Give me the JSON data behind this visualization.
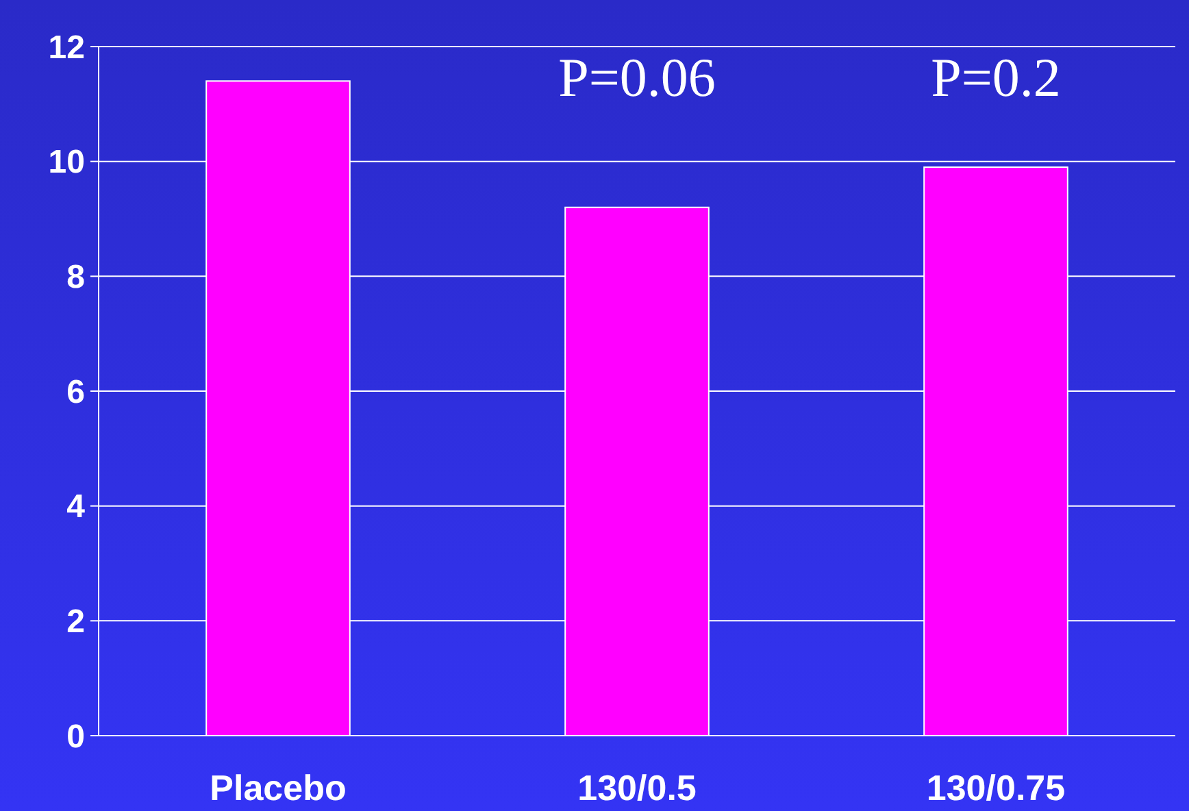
{
  "chart_data": {
    "type": "bar",
    "categories": [
      "Placebo",
      "130/0.5",
      "130/0.75"
    ],
    "values": [
      11.4,
      9.2,
      9.9
    ],
    "color": "#ff00ff",
    "ylim": [
      0,
      12
    ],
    "yticks": [
      0,
      2,
      4,
      6,
      8,
      10,
      12
    ],
    "grid": "y",
    "annotations": [
      "P=0.06",
      "P=0.2"
    ]
  }
}
